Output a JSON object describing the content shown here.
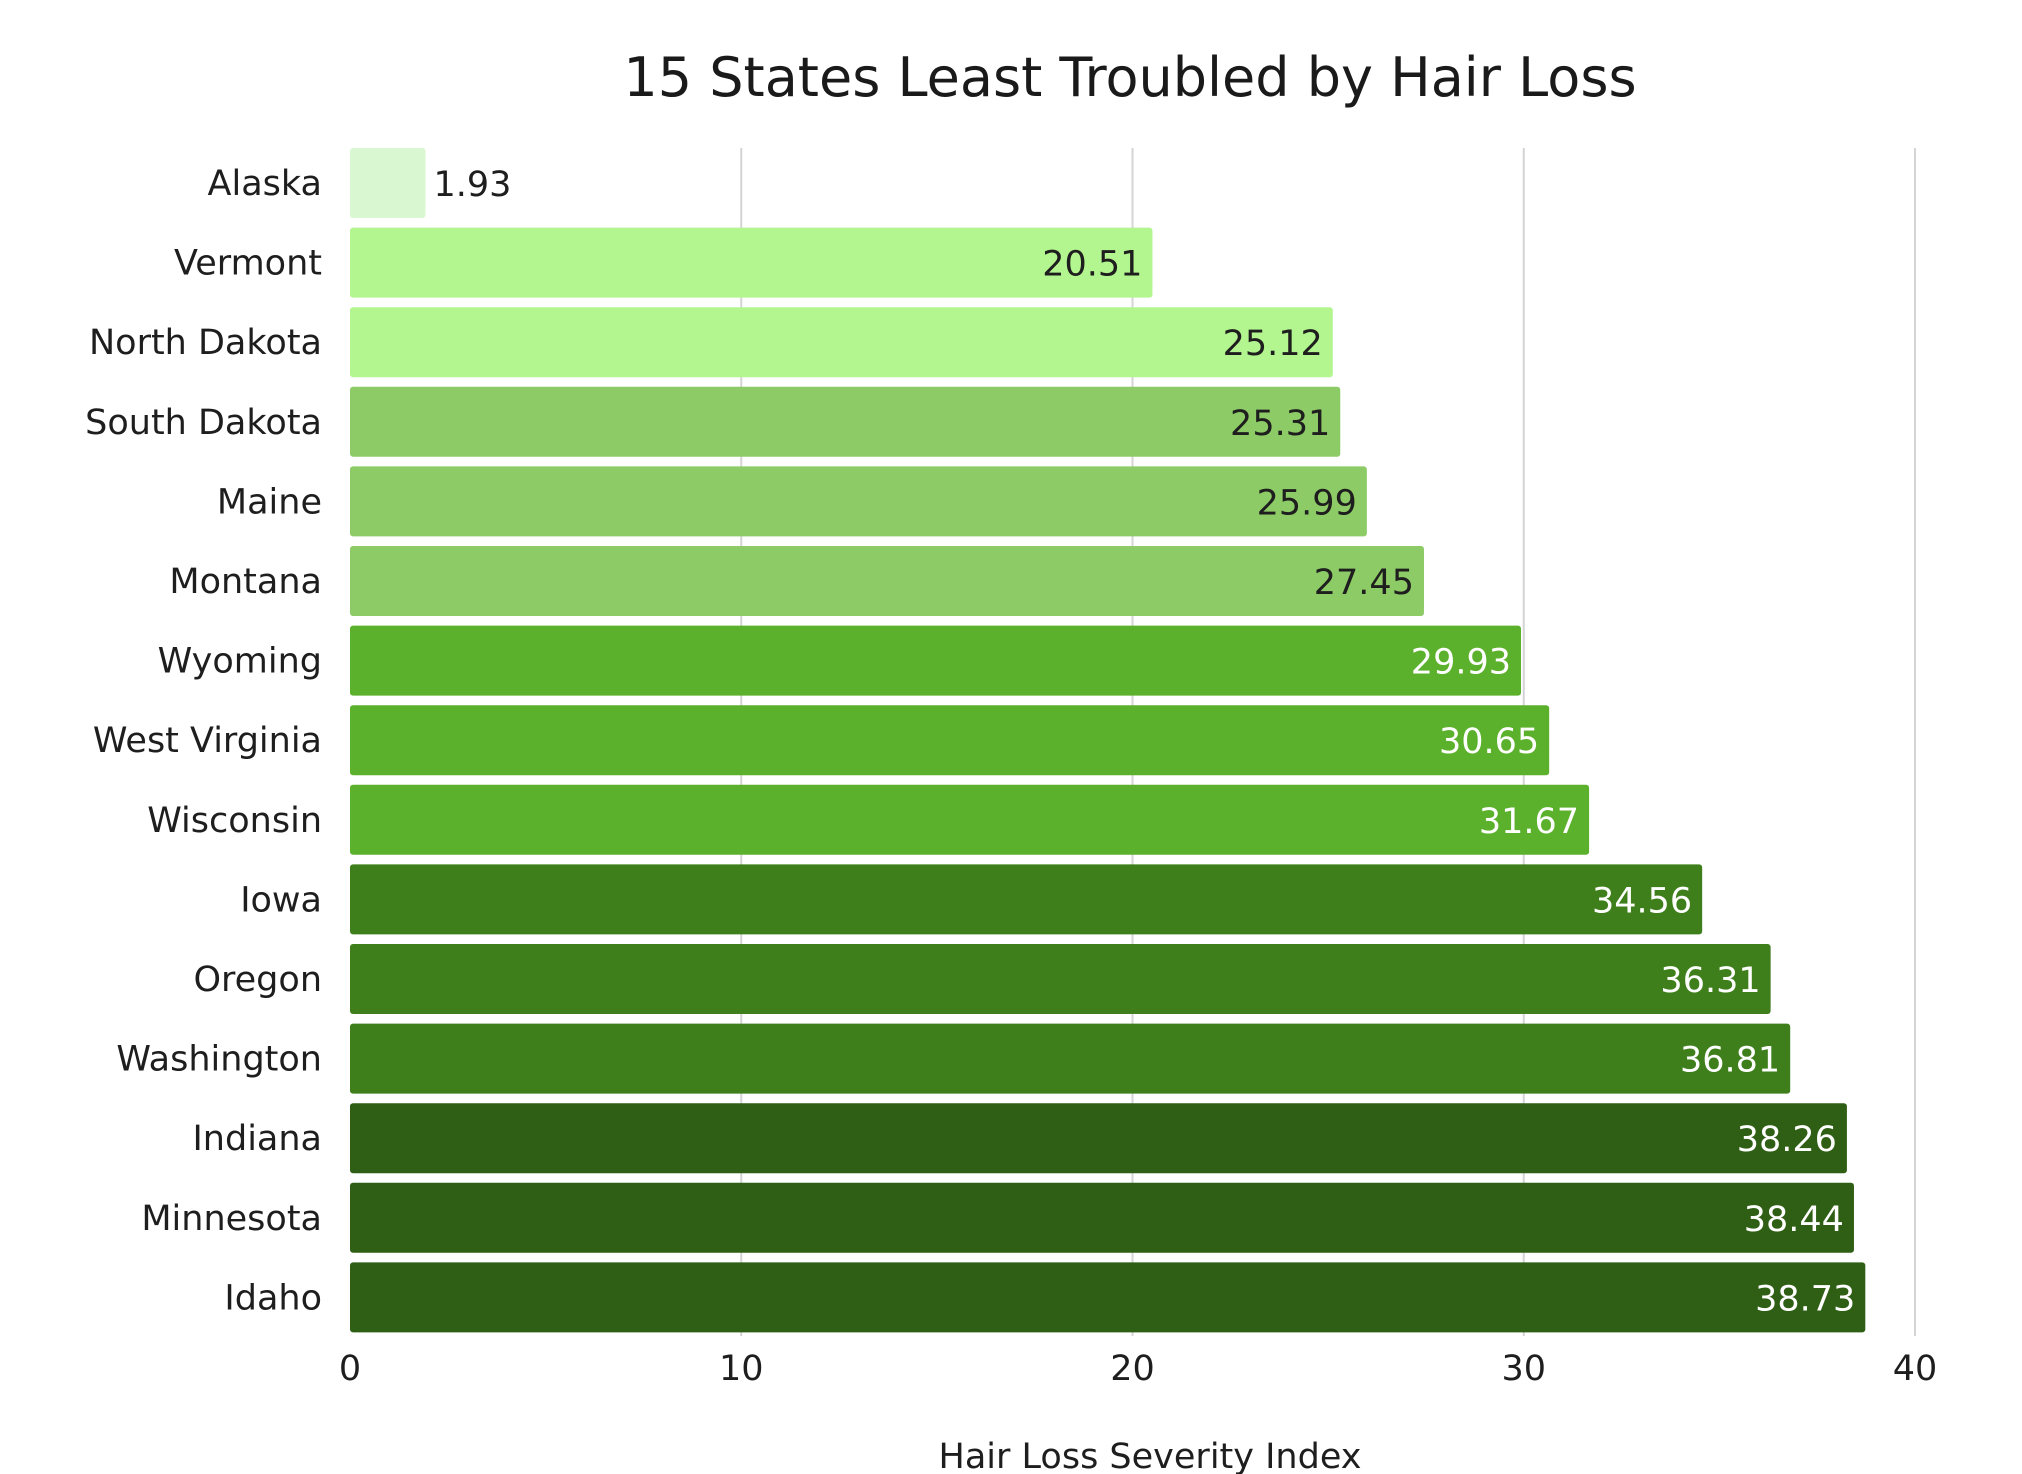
{
  "chart_data": {
    "type": "bar",
    "orientation": "horizontal",
    "title": "15 States Least Troubled by Hair Loss",
    "xlabel": "Hair Loss Severity Index",
    "ylabel": "",
    "xlim": [
      0,
      40
    ],
    "ticks": [
      0,
      10,
      20,
      30,
      40
    ],
    "grid": true,
    "categories": [
      "Alaska",
      "Vermont",
      "North Dakota",
      "South Dakota",
      "Maine",
      "Montana",
      "Wyoming",
      "West Virginia",
      "Wisconsin",
      "Iowa",
      "Oregon",
      "Washington",
      "Indiana",
      "Minnesota",
      "Idaho"
    ],
    "values": [
      1.93,
      20.51,
      25.12,
      25.31,
      25.99,
      27.45,
      29.93,
      30.65,
      31.67,
      34.56,
      36.31,
      36.81,
      38.26,
      38.44,
      38.73
    ],
    "labels": [
      "1.93",
      "20.51",
      "25.12",
      "25.31",
      "25.99",
      "27.45",
      "29.93",
      "30.65",
      "31.67",
      "34.56",
      "36.31",
      "36.81",
      "38.26",
      "38.44",
      "38.73"
    ],
    "colors": [
      "#d9f7d0",
      "#b3f58f",
      "#b3f58f",
      "#8dcb66",
      "#8dcb66",
      "#8dcb66",
      "#5cb12c",
      "#5cb12c",
      "#5cb12c",
      "#3e7f1b",
      "#3e7f1b",
      "#3e7f1b",
      "#2f5f14",
      "#2f5f14",
      "#2f5f14"
    ],
    "label_colors": [
      "#1e1e1e",
      "#1e1e1e",
      "#1e1e1e",
      "#1e1e1e",
      "#1e1e1e",
      "#1e1e1e",
      "#ffffff",
      "#ffffff",
      "#ffffff",
      "#ffffff",
      "#ffffff",
      "#ffffff",
      "#ffffff",
      "#ffffff",
      "#ffffff"
    ]
  }
}
